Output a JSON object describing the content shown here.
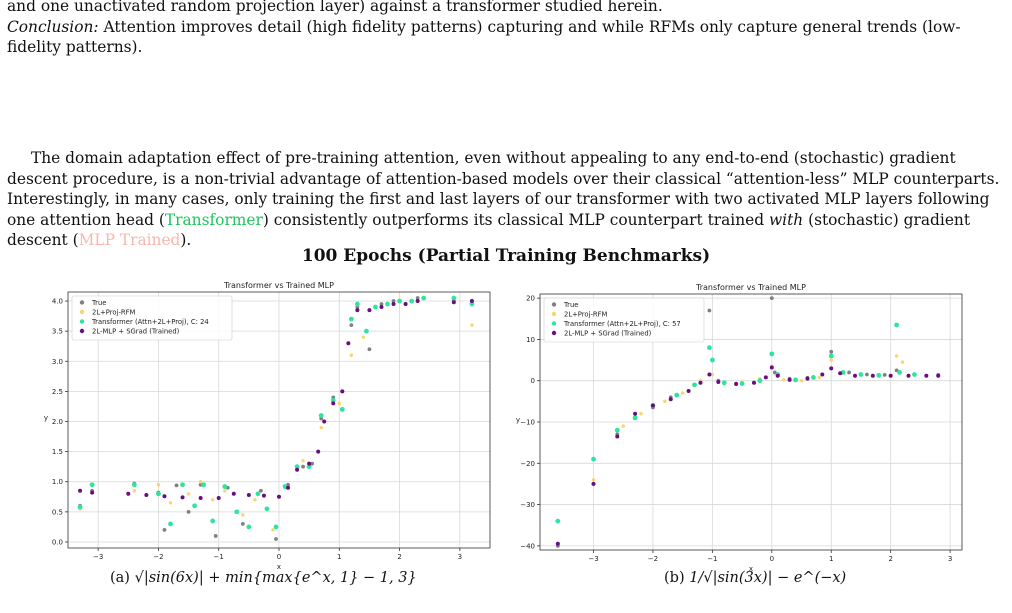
{
  "intro": {
    "line1": "and one unactivated random projection layer) against a transformer studied herein.",
    "conclusion_label": "Conclusion:",
    "conclusion_text": " Attention improves detail (high fidelity patterns) capturing and while RFMs only capture general trends (low-fidelity patterns)."
  },
  "body": {
    "part1": "The domain adaptation effect of pre-training attention, even without appealing to any end-to-end (stochastic) gradient descent procedure, is a non-trivial advantage of attention-based models over their classical “attention-less” MLP counterparts. Interestingly, in many cases, only training the first and last layers of our transformer with two activated MLP layers following one attention head (",
    "transformer_link": "Transformer",
    "part2": ") consistently outperforms its classical MLP counterpart trained ",
    "with_word": "with",
    "part3": " (stochastic) gradient descent (",
    "mlp_link": "MLP Trained",
    "part4": ")."
  },
  "figure": {
    "title": "100 Epochs (Partial Training Benchmarks)"
  },
  "colors": {
    "true": "#808080",
    "rfm": "#f5d76e",
    "transformer": "#2ee59d",
    "mlp": "#6a0d83",
    "transformer_link": "#22c55e",
    "mlp_link": "#f7b7ae"
  },
  "chart_data": [
    {
      "type": "scatter",
      "title": "Transformer vs Trained MLP",
      "xlabel": "x",
      "ylabel": "y",
      "xlim": [
        -3.5,
        3.5
      ],
      "ylim": [
        -0.1,
        4.15
      ],
      "xticks": [
        -3,
        -2,
        -1,
        0,
        1,
        2,
        3
      ],
      "yticks": [
        0.0,
        0.5,
        1.0,
        1.5,
        2.0,
        2.5,
        3.0,
        3.5,
        4.0
      ],
      "grid": true,
      "legend_position": "top-left",
      "legend": [
        "True",
        "2L+Proj-RFM",
        "Transformer (Attn+2L+Proj), C: 24",
        "2L-MLP + SGrad (Trained)"
      ],
      "caption_label": "(a)",
      "caption_formula": "√|sin(6x)| + min{max{e^x, 1} − 1, 3}",
      "series": [
        {
          "name": "True",
          "points": [
            [
              -3.3,
              0.6
            ],
            [
              -3.1,
              0.85
            ],
            [
              -2.4,
              0.97
            ],
            [
              -2.0,
              0.82
            ],
            [
              -1.9,
              0.2
            ],
            [
              -1.7,
              0.94
            ],
            [
              -1.5,
              0.5
            ],
            [
              -1.3,
              0.95
            ],
            [
              -1.05,
              0.1
            ],
            [
              -0.85,
              0.9
            ],
            [
              -0.6,
              0.3
            ],
            [
              -0.3,
              0.85
            ],
            [
              -0.05,
              0.05
            ],
            [
              0.15,
              0.95
            ],
            [
              0.4,
              1.25
            ],
            [
              0.55,
              1.3
            ],
            [
              0.7,
              2.05
            ],
            [
              0.9,
              2.4
            ],
            [
              1.05,
              2.5
            ],
            [
              1.2,
              3.6
            ],
            [
              1.3,
              3.9
            ],
            [
              1.5,
              3.2
            ],
            [
              1.7,
              3.95
            ],
            [
              1.9,
              4.0
            ],
            [
              2.1,
              3.95
            ],
            [
              2.3,
              4.05
            ],
            [
              2.9,
              4.0
            ],
            [
              3.2,
              4.0
            ]
          ]
        },
        {
          "name": "2L+Proj-RFM",
          "points": [
            [
              -3.3,
              0.55
            ],
            [
              -2.4,
              0.85
            ],
            [
              -2.0,
              0.95
            ],
            [
              -1.8,
              0.65
            ],
            [
              -1.5,
              0.8
            ],
            [
              -1.3,
              1.0
            ],
            [
              -1.1,
              0.7
            ],
            [
              -0.9,
              0.85
            ],
            [
              -0.6,
              0.45
            ],
            [
              -0.4,
              0.7
            ],
            [
              -0.1,
              0.2
            ],
            [
              0.1,
              0.9
            ],
            [
              0.4,
              1.35
            ],
            [
              0.7,
              1.9
            ],
            [
              1.0,
              2.3
            ],
            [
              1.2,
              3.1
            ],
            [
              1.4,
              3.4
            ],
            [
              1.7,
              3.9
            ],
            [
              2.2,
              4.0
            ],
            [
              3.2,
              3.6
            ]
          ]
        },
        {
          "name": "Transformer (Attn+2L+Proj), C: 24",
          "points": [
            [
              -3.3,
              0.58
            ],
            [
              -3.1,
              0.95
            ],
            [
              -2.4,
              0.95
            ],
            [
              -2.0,
              0.8
            ],
            [
              -1.8,
              0.3
            ],
            [
              -1.6,
              0.95
            ],
            [
              -1.4,
              0.6
            ],
            [
              -1.25,
              0.95
            ],
            [
              -1.1,
              0.35
            ],
            [
              -0.9,
              0.92
            ],
            [
              -0.7,
              0.5
            ],
            [
              -0.5,
              0.25
            ],
            [
              -0.35,
              0.8
            ],
            [
              -0.2,
              0.55
            ],
            [
              -0.05,
              0.25
            ],
            [
              0.1,
              0.92
            ],
            [
              0.3,
              1.25
            ],
            [
              0.5,
              1.25
            ],
            [
              0.7,
              2.1
            ],
            [
              0.9,
              2.35
            ],
            [
              1.05,
              2.2
            ],
            [
              1.2,
              3.7
            ],
            [
              1.3,
              3.95
            ],
            [
              1.45,
              3.5
            ],
            [
              1.6,
              3.9
            ],
            [
              1.8,
              3.95
            ],
            [
              2.0,
              4.0
            ],
            [
              2.2,
              4.0
            ],
            [
              2.4,
              4.05
            ],
            [
              2.9,
              4.05
            ],
            [
              3.2,
              3.95
            ]
          ]
        },
        {
          "name": "2L-MLP + SGrad (Trained)",
          "points": [
            [
              -3.3,
              0.85
            ],
            [
              -3.1,
              0.82
            ],
            [
              -2.5,
              0.8
            ],
            [
              -2.2,
              0.78
            ],
            [
              -1.9,
              0.76
            ],
            [
              -1.6,
              0.74
            ],
            [
              -1.3,
              0.73
            ],
            [
              -1.0,
              0.73
            ],
            [
              -0.75,
              0.8
            ],
            [
              -0.5,
              0.78
            ],
            [
              -0.25,
              0.77
            ],
            [
              0.0,
              0.75
            ],
            [
              0.15,
              0.9
            ],
            [
              0.3,
              1.2
            ],
            [
              0.5,
              1.3
            ],
            [
              0.65,
              1.5
            ],
            [
              0.75,
              2.0
            ],
            [
              0.9,
              2.3
            ],
            [
              1.05,
              2.5
            ],
            [
              1.15,
              3.3
            ],
            [
              1.3,
              3.85
            ],
            [
              1.5,
              3.85
            ],
            [
              1.7,
              3.9
            ],
            [
              1.9,
              3.95
            ],
            [
              2.1,
              3.95
            ],
            [
              2.3,
              4.0
            ],
            [
              2.9,
              3.98
            ],
            [
              3.2,
              4.0
            ]
          ]
        }
      ]
    },
    {
      "type": "scatter",
      "title": "Transformer vs Trained MLP",
      "xlabel": "x",
      "ylabel": "y",
      "xlim": [
        -3.9,
        3.2
      ],
      "ylim": [
        -41,
        21
      ],
      "xticks": [
        -3,
        -2,
        -1,
        0,
        1,
        2,
        3
      ],
      "yticks": [
        -40,
        -30,
        -20,
        -10,
        0,
        10,
        20
      ],
      "grid": true,
      "legend_position": "top-left",
      "legend": [
        "True",
        "2L+Proj-RFM",
        "Transformer (Attn+2L+Proj), C: 57",
        "2L-MLP + SGrad (Trained)"
      ],
      "caption_label": "(b)",
      "caption_formula": "1/√|sin(3x)| − e^(−x)",
      "series": [
        {
          "name": "True",
          "points": [
            [
              -3.6,
              -40
            ],
            [
              -3.0,
              -25
            ],
            [
              -2.6,
              -13
            ],
            [
              -2.3,
              -9
            ],
            [
              -2.0,
              -6.5
            ],
            [
              -1.7,
              -4
            ],
            [
              -1.3,
              -1
            ],
            [
              -1.05,
              17
            ],
            [
              -0.9,
              0
            ],
            [
              -0.6,
              -0.7
            ],
            [
              -0.3,
              -0.5
            ],
            [
              0.0,
              20
            ],
            [
              0.05,
              2
            ],
            [
              0.3,
              0.5
            ],
            [
              0.6,
              0.7
            ],
            [
              1.0,
              7
            ],
            [
              1.3,
              2
            ],
            [
              1.6,
              1.5
            ],
            [
              1.9,
              1.4
            ],
            [
              2.1,
              2.5
            ],
            [
              2.4,
              1.5
            ],
            [
              2.8,
              1.4
            ]
          ]
        },
        {
          "name": "2L+Proj-RFM",
          "points": [
            [
              -3.0,
              -24
            ],
            [
              -2.5,
              -11
            ],
            [
              -2.2,
              -8
            ],
            [
              -1.8,
              -5
            ],
            [
              -1.5,
              -3
            ],
            [
              -1.2,
              0
            ],
            [
              -1.0,
              1.5
            ],
            [
              -0.8,
              -0.8
            ],
            [
              -0.5,
              -0.3
            ],
            [
              -0.2,
              0.5
            ],
            [
              0.0,
              3.5
            ],
            [
              0.2,
              0.2
            ],
            [
              0.5,
              0
            ],
            [
              0.8,
              0.8
            ],
            [
              1.0,
              5
            ],
            [
              1.2,
              1.8
            ],
            [
              1.5,
              1.5
            ],
            [
              1.8,
              1.5
            ],
            [
              2.1,
              6
            ],
            [
              2.2,
              4.5
            ]
          ]
        },
        {
          "name": "Transformer (Attn+2L+Proj), C: 57",
          "points": [
            [
              -3.6,
              -34
            ],
            [
              -3.0,
              -19
            ],
            [
              -2.6,
              -12
            ],
            [
              -2.3,
              -9
            ],
            [
              -2.0,
              -6
            ],
            [
              -1.6,
              -3.5
            ],
            [
              -1.3,
              -1
            ],
            [
              -1.05,
              8
            ],
            [
              -1.0,
              5
            ],
            [
              -0.8,
              -0.5
            ],
            [
              -0.5,
              -0.7
            ],
            [
              -0.2,
              0
            ],
            [
              0.0,
              6.5
            ],
            [
              0.1,
              1.5
            ],
            [
              0.4,
              0.2
            ],
            [
              0.7,
              0.8
            ],
            [
              1.0,
              6
            ],
            [
              1.2,
              2
            ],
            [
              1.5,
              1.5
            ],
            [
              1.8,
              1.3
            ],
            [
              2.1,
              13.5
            ],
            [
              2.15,
              2
            ],
            [
              2.4,
              1.5
            ]
          ]
        },
        {
          "name": "2L-MLP + SGrad (Trained)",
          "points": [
            [
              -3.6,
              -39.5
            ],
            [
              -3.0,
              -25
            ],
            [
              -2.6,
              -13.5
            ],
            [
              -2.3,
              -8
            ],
            [
              -2.0,
              -6
            ],
            [
              -1.7,
              -4.5
            ],
            [
              -1.4,
              -2.5
            ],
            [
              -1.2,
              -0.5
            ],
            [
              -1.05,
              1.5
            ],
            [
              -0.9,
              -0.3
            ],
            [
              -0.6,
              -0.8
            ],
            [
              -0.3,
              -0.5
            ],
            [
              -0.1,
              0.8
            ],
            [
              0.0,
              3.2
            ],
            [
              0.1,
              1.2
            ],
            [
              0.3,
              0.2
            ],
            [
              0.6,
              0.5
            ],
            [
              0.85,
              1.5
            ],
            [
              1.0,
              3
            ],
            [
              1.15,
              1.8
            ],
            [
              1.4,
              1.2
            ],
            [
              1.7,
              1.2
            ],
            [
              2.0,
              1.2
            ],
            [
              2.3,
              1.2
            ],
            [
              2.6,
              1.2
            ],
            [
              2.8,
              1.2
            ]
          ]
        }
      ]
    }
  ]
}
